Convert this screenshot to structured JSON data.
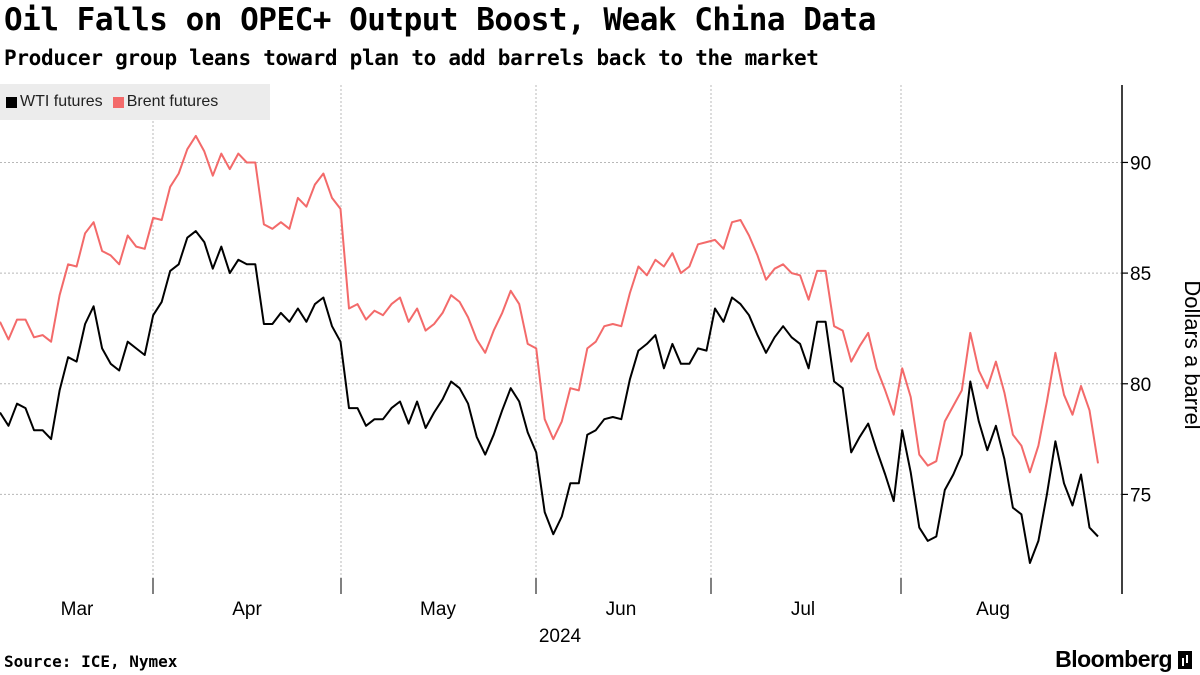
{
  "header": {
    "title": "Oil Falls on OPEC+ Output Boost, Weak China Data",
    "subtitle": "Producer group leans toward plan to add barrels back to the market"
  },
  "footer": {
    "source": "Source: ICE, Nymex",
    "brand": "Bloomberg"
  },
  "chart_data": {
    "type": "line",
    "ylabel": "Dollars a barrel",
    "xlabel": "2024",
    "ylim": [
      70.5,
      93.5
    ],
    "y_ticks": [
      "75",
      "80",
      "85",
      "90"
    ],
    "x_ticks": [
      "Mar",
      "Apr",
      "May",
      "Jun",
      "Jul",
      "Aug"
    ],
    "grid": true,
    "legend_position": "top-left",
    "series": [
      {
        "name": "WTI futures",
        "color": "#000000",
        "values": [
          78.7,
          78.1,
          79.1,
          78.9,
          77.9,
          77.9,
          77.5,
          79.7,
          81.2,
          81.0,
          82.7,
          83.5,
          81.6,
          80.9,
          80.6,
          81.9,
          81.6,
          81.3,
          83.1,
          83.7,
          85.1,
          85.4,
          86.6,
          86.9,
          86.4,
          85.2,
          86.2,
          85.0,
          85.6,
          85.4,
          85.4,
          82.7,
          82.7,
          83.2,
          82.8,
          83.4,
          82.8,
          83.6,
          83.9,
          82.6,
          81.9,
          78.9,
          78.9,
          78.1,
          78.4,
          78.4,
          78.9,
          79.2,
          78.2,
          79.2,
          78.0,
          78.7,
          79.3,
          80.1,
          79.8,
          79.1,
          77.6,
          76.8,
          77.7,
          78.8,
          79.8,
          79.2,
          77.8,
          76.9,
          74.2,
          73.2,
          74.0,
          75.5,
          75.5,
          77.7,
          77.9,
          78.4,
          78.5,
          78.4,
          80.2,
          81.5,
          81.8,
          82.2,
          80.7,
          81.8,
          80.9,
          80.9,
          81.6,
          81.5,
          83.4,
          82.8,
          83.9,
          83.6,
          83.1,
          82.2,
          81.4,
          82.1,
          82.6,
          82.1,
          81.8,
          80.7,
          82.8,
          82.8,
          80.1,
          79.8,
          76.9,
          77.6,
          78.2,
          77.0,
          75.9,
          74.7,
          77.9,
          76.0,
          73.5,
          72.9,
          73.1,
          75.2,
          75.9,
          76.8,
          80.1,
          78.3,
          77.0,
          78.1,
          76.6,
          74.4,
          74.1,
          71.9,
          72.9,
          75.0,
          77.4,
          75.5,
          74.5,
          75.9,
          73.5,
          73.1
        ]
      },
      {
        "name": "Brent futures",
        "color": "#f36a6a",
        "values": [
          82.8,
          82.0,
          82.9,
          82.9,
          82.1,
          82.2,
          81.9,
          84.0,
          85.4,
          85.3,
          86.8,
          87.3,
          86.0,
          85.8,
          85.4,
          86.7,
          86.2,
          86.1,
          87.5,
          87.4,
          88.9,
          89.5,
          90.6,
          91.2,
          90.5,
          89.4,
          90.4,
          89.7,
          90.4,
          90.0,
          90.0,
          87.2,
          87.0,
          87.3,
          87.0,
          88.4,
          88.0,
          89.0,
          89.5,
          88.4,
          87.9,
          83.4,
          83.6,
          82.9,
          83.3,
          83.1,
          83.6,
          83.9,
          82.8,
          83.4,
          82.4,
          82.7,
          83.2,
          84.0,
          83.7,
          83.0,
          82.0,
          81.4,
          82.4,
          83.2,
          84.2,
          83.6,
          81.8,
          81.6,
          78.4,
          77.5,
          78.3,
          79.8,
          79.7,
          81.6,
          81.9,
          82.6,
          82.7,
          82.6,
          84.1,
          85.3,
          84.9,
          85.6,
          85.3,
          85.9,
          85.0,
          85.3,
          86.3,
          86.4,
          86.5,
          86.1,
          87.3,
          87.4,
          86.7,
          85.8,
          84.7,
          85.2,
          85.4,
          85.0,
          84.9,
          83.8,
          85.1,
          85.1,
          82.6,
          82.4,
          81.0,
          81.7,
          82.3,
          80.7,
          79.7,
          78.6,
          80.7,
          79.4,
          76.8,
          76.3,
          76.5,
          78.3,
          79.0,
          79.7,
          82.3,
          80.6,
          79.8,
          81.0,
          79.6,
          77.7,
          77.2,
          76.0,
          77.2,
          79.2,
          81.4,
          79.5,
          78.6,
          79.9,
          78.8,
          76.4
        ]
      }
    ]
  }
}
